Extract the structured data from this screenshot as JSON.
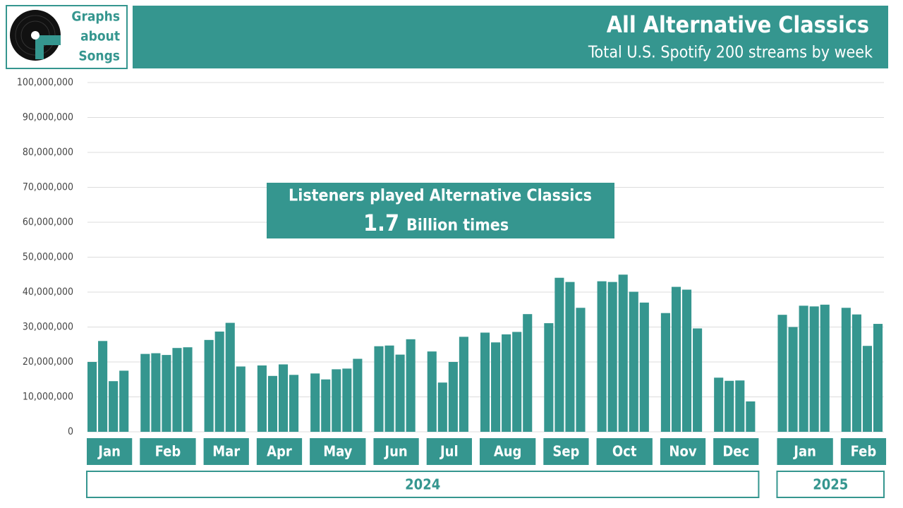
{
  "chart_data": {
    "type": "bar",
    "logo": [
      "Graphs",
      "about",
      "Songs"
    ],
    "title": "All Alternative Classics",
    "subtitle": "Total U.S. Spotify 200 streams by week",
    "annotation": {
      "line1": "Listeners played Alternative Classics",
      "number": "1.7",
      "unit": "Billion times"
    },
    "color": "#35968f",
    "ylim": [
      0,
      100000000
    ],
    "yticks": [
      {
        "value": 0,
        "label": "0"
      },
      {
        "value": 10000000,
        "label": "10,000,000"
      },
      {
        "value": 20000000,
        "label": "20,000,000"
      },
      {
        "value": 30000000,
        "label": "30,000,000"
      },
      {
        "value": 40000000,
        "label": "40,000,000"
      },
      {
        "value": 50000000,
        "label": "50,000,000"
      },
      {
        "value": 60000000,
        "label": "60,000,000"
      },
      {
        "value": 70000000,
        "label": "70,000,000"
      },
      {
        "value": 80000000,
        "label": "80,000,000"
      },
      {
        "value": 90000000,
        "label": "90,000,000"
      },
      {
        "value": 100000000,
        "label": "100,000,000"
      }
    ],
    "grid": true,
    "groups": [
      {
        "year": "2024",
        "months": [
          {
            "name": "Jan",
            "values": [
              20000000,
              26000000,
              14500000,
              17500000
            ]
          },
          {
            "name": "Feb",
            "values": [
              22300000,
              22500000,
              22000000,
              24000000,
              24200000
            ]
          },
          {
            "name": "Mar",
            "values": [
              26300000,
              28700000,
              31200000,
              18700000
            ]
          },
          {
            "name": "Apr",
            "values": [
              19000000,
              16000000,
              19300000,
              16300000
            ]
          },
          {
            "name": "May",
            "values": [
              16700000,
              15000000,
              17900000,
              18100000,
              20900000
            ]
          },
          {
            "name": "Jun",
            "values": [
              24500000,
              24700000,
              22100000,
              26500000
            ]
          },
          {
            "name": "Jul",
            "values": [
              23000000,
              14100000,
              20000000,
              27200000
            ]
          },
          {
            "name": "Aug",
            "values": [
              28400000,
              25600000,
              27900000,
              28600000,
              33700000
            ]
          },
          {
            "name": "Sep",
            "values": [
              31100000,
              44100000,
              42900000,
              35500000
            ]
          },
          {
            "name": "Oct",
            "values": [
              43100000,
              42900000,
              45000000,
              40100000,
              37000000
            ]
          },
          {
            "name": "Nov",
            "values": [
              34000000,
              41500000,
              40700000,
              29600000
            ]
          },
          {
            "name": "Dec",
            "values": [
              15500000,
              14600000,
              14700000,
              8700000
            ]
          }
        ]
      },
      {
        "year": "2025",
        "months": [
          {
            "name": "Jan",
            "values": [
              33500000,
              30000000,
              36100000,
              35900000,
              36400000
            ]
          },
          {
            "name": "Feb",
            "values": [
              35500000,
              33600000,
              24600000,
              30900000
            ]
          }
        ]
      }
    ]
  }
}
